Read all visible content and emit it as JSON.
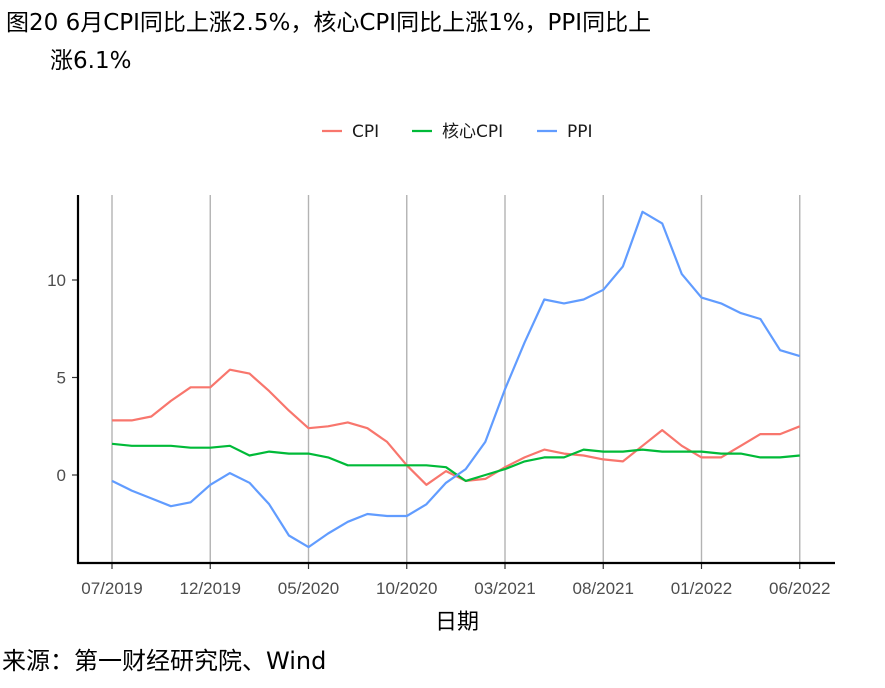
{
  "title_line1": "图20 6月CPI同比上涨2.5%，核心CPI同比上涨1%，PPI同比上",
  "title_line2": "涨6.1%",
  "source": "来源：第一财经研究院、Wind",
  "chart_data": {
    "type": "line",
    "xlabel": "日期",
    "ylabel": "",
    "x_ticks": [
      "07/2019",
      "12/2019",
      "05/2020",
      "10/2020",
      "03/2021",
      "08/2021",
      "01/2022",
      "06/2022"
    ],
    "y_ticks": [
      "0",
      "5",
      "10"
    ],
    "ylim": [
      -4.5,
      14.5
    ],
    "grid": "vertical",
    "legend_position": "top",
    "x": [
      "2019-07",
      "2019-08",
      "2019-09",
      "2019-10",
      "2019-11",
      "2019-12",
      "2020-01",
      "2020-02",
      "2020-03",
      "2020-04",
      "2020-05",
      "2020-06",
      "2020-07",
      "2020-08",
      "2020-09",
      "2020-10",
      "2020-11",
      "2020-12",
      "2021-01",
      "2021-02",
      "2021-03",
      "2021-04",
      "2021-05",
      "2021-06",
      "2021-07",
      "2021-08",
      "2021-09",
      "2021-10",
      "2021-11",
      "2021-12",
      "2022-01",
      "2022-02",
      "2022-03",
      "2022-04",
      "2022-05",
      "2022-06"
    ],
    "series": [
      {
        "name": "CPI",
        "color": "#f8766d",
        "values": [
          2.8,
          2.8,
          3.0,
          3.8,
          4.5,
          4.5,
          5.4,
          5.2,
          4.3,
          3.3,
          2.4,
          2.5,
          2.7,
          2.4,
          1.7,
          0.5,
          -0.5,
          0.2,
          -0.3,
          -0.2,
          0.4,
          0.9,
          1.3,
          1.1,
          1.0,
          0.8,
          0.7,
          1.5,
          2.3,
          1.5,
          0.9,
          0.9,
          1.5,
          2.1,
          2.1,
          2.5
        ]
      },
      {
        "name": "核心CPI",
        "color": "#00ba38",
        "values": [
          1.6,
          1.5,
          1.5,
          1.5,
          1.4,
          1.4,
          1.5,
          1.0,
          1.2,
          1.1,
          1.1,
          0.9,
          0.5,
          0.5,
          0.5,
          0.5,
          0.5,
          0.4,
          -0.3,
          0.0,
          0.3,
          0.7,
          0.9,
          0.9,
          1.3,
          1.2,
          1.2,
          1.3,
          1.2,
          1.2,
          1.2,
          1.1,
          1.1,
          0.9,
          0.9,
          1.0
        ]
      },
      {
        "name": "PPI",
        "color": "#619cff",
        "values": [
          -0.3,
          -0.8,
          -1.2,
          -1.6,
          -1.4,
          -0.5,
          0.1,
          -0.4,
          -1.5,
          -3.1,
          -3.7,
          -3.0,
          -2.4,
          -2.0,
          -2.1,
          -2.1,
          -1.5,
          -0.4,
          0.3,
          1.7,
          4.4,
          6.8,
          9.0,
          8.8,
          9.0,
          9.5,
          10.7,
          13.5,
          12.9,
          10.3,
          9.1,
          8.8,
          8.3,
          8.0,
          6.4,
          6.1
        ]
      }
    ]
  }
}
